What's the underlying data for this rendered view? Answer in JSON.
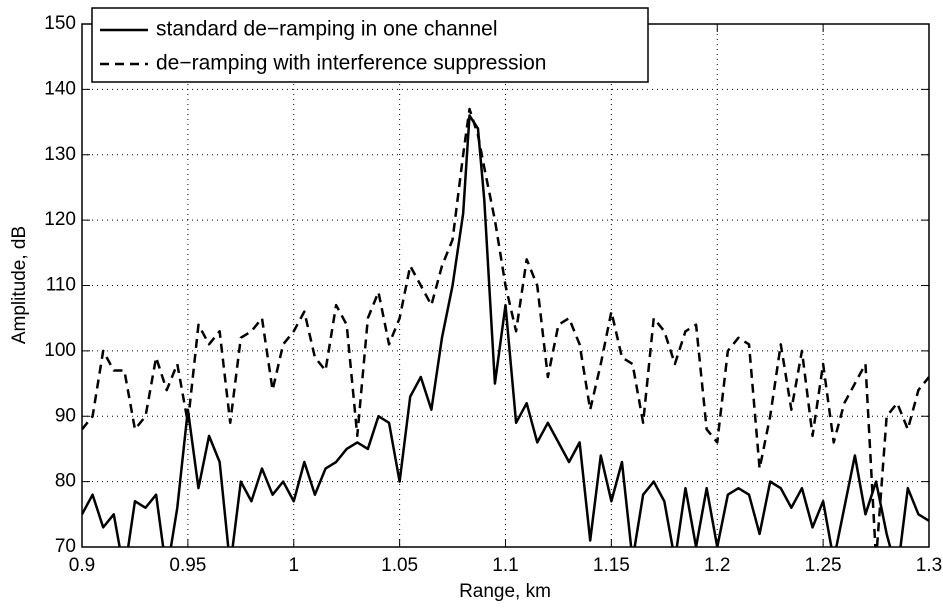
{
  "chart_data": {
    "type": "line",
    "x_label": "Range, km",
    "y_label": "Amplitude, dB",
    "x": [
      0.9,
      0.905,
      0.91,
      0.915,
      0.92,
      0.925,
      0.93,
      0.935,
      0.94,
      0.945,
      0.95,
      0.955,
      0.96,
      0.965,
      0.97,
      0.975,
      0.98,
      0.985,
      0.99,
      0.995,
      1.0,
      1.005,
      1.01,
      1.015,
      1.02,
      1.025,
      1.03,
      1.035,
      1.04,
      1.045,
      1.05,
      1.055,
      1.06,
      1.065,
      1.07,
      1.075,
      1.08,
      1.083,
      1.087,
      1.09,
      1.095,
      1.1,
      1.105,
      1.11,
      1.115,
      1.12,
      1.125,
      1.13,
      1.135,
      1.14,
      1.145,
      1.15,
      1.155,
      1.16,
      1.165,
      1.17,
      1.175,
      1.18,
      1.185,
      1.19,
      1.195,
      1.2,
      1.205,
      1.21,
      1.215,
      1.22,
      1.225,
      1.23,
      1.235,
      1.24,
      1.245,
      1.25,
      1.255,
      1.26,
      1.265,
      1.27,
      1.275,
      1.28,
      1.285,
      1.29,
      1.295,
      1.3
    ],
    "series": [
      {
        "name": "standard de−ramping in one channel",
        "color": "#000000",
        "line_style": "solid",
        "values": [
          75,
          78,
          73,
          75,
          66,
          77,
          76,
          78,
          66,
          76,
          91,
          79,
          87,
          83,
          67,
          80,
          77,
          82,
          78,
          80,
          77,
          83,
          78,
          82,
          83,
          85,
          86,
          85,
          90,
          89,
          80,
          93,
          96,
          91,
          102,
          110,
          121,
          136,
          134,
          123,
          95,
          107,
          89,
          92,
          86,
          89,
          86,
          83,
          86,
          71,
          84,
          77,
          83,
          68,
          78,
          80,
          77,
          68,
          79,
          70,
          79,
          70,
          78,
          79,
          78,
          72,
          80,
          79,
          76,
          79,
          73,
          77,
          68,
          76,
          84,
          75,
          80,
          72,
          66,
          79,
          75,
          74
        ]
      },
      {
        "name": "de−ramping with interference suppression",
        "color": "#000000",
        "line_style": "dashed",
        "values": [
          88,
          90,
          100,
          97,
          97,
          88,
          90,
          99,
          94,
          98,
          89,
          104,
          101,
          103,
          89,
          102,
          103,
          105,
          94,
          101,
          103,
          106,
          99,
          97,
          107,
          104,
          87,
          105,
          109,
          101,
          105,
          113,
          110,
          107,
          113,
          117,
          130,
          137,
          133,
          128,
          120,
          110,
          103,
          114,
          110,
          96,
          104,
          105,
          101,
          91,
          98,
          106,
          99,
          98,
          89,
          105,
          103,
          98,
          103,
          104,
          88,
          86,
          100,
          102,
          101,
          82,
          90,
          101,
          91,
          100,
          87,
          98,
          86,
          92,
          95,
          98,
          68,
          90,
          92,
          88,
          94,
          96
        ]
      }
    ],
    "xlim": [
      0.9,
      1.3
    ],
    "xticks": [
      0.9,
      0.95,
      1,
      1.05,
      1.1,
      1.15,
      1.2,
      1.25,
      1.3
    ],
    "ylim": [
      70,
      150
    ],
    "yticks": [
      70,
      80,
      90,
      100,
      110,
      120,
      130,
      140,
      150
    ],
    "grid": true,
    "legend": "upper left"
  }
}
